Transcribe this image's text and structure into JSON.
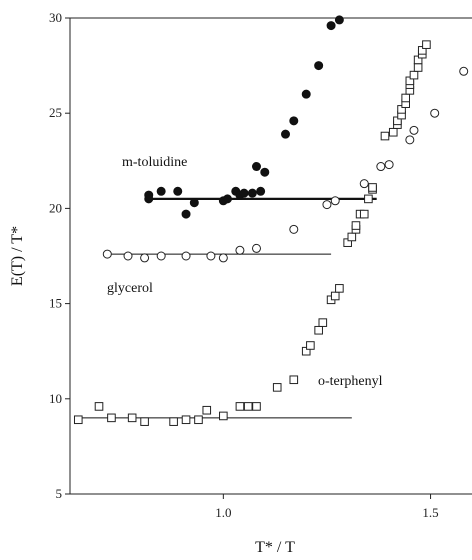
{
  "chart_data": {
    "type": "scatter",
    "xlabel": "T* / T",
    "ylabel": "E(T) / T*",
    "xlim": [
      0.63,
      1.6
    ],
    "ylim": [
      5,
      30
    ],
    "xticks": [
      "1.0",
      "1.5"
    ],
    "yticks": [
      "5",
      "10",
      "15",
      "20",
      "25",
      "30"
    ],
    "grid": false,
    "legend": "none",
    "annotations": [
      "m-toluidine",
      "glycerol",
      "o-terphenyl"
    ],
    "series": [
      {
        "name": "m-toluidine",
        "marker": "filled-circle",
        "points": [
          [
            0.82,
            20.7
          ],
          [
            0.82,
            20.5
          ],
          [
            0.85,
            20.9
          ],
          [
            0.89,
            20.9
          ],
          [
            0.91,
            19.7
          ],
          [
            0.93,
            20.3
          ],
          [
            1.0,
            20.4
          ],
          [
            1.01,
            20.5
          ],
          [
            1.03,
            20.9
          ],
          [
            1.04,
            20.7
          ],
          [
            1.05,
            20.8
          ],
          [
            1.07,
            20.8
          ],
          [
            1.08,
            22.2
          ],
          [
            1.09,
            20.9
          ],
          [
            1.1,
            21.9
          ],
          [
            1.15,
            23.9
          ],
          [
            1.17,
            24.6
          ],
          [
            1.2,
            26.0
          ],
          [
            1.23,
            27.5
          ],
          [
            1.26,
            29.6
          ],
          [
            1.28,
            29.9
          ]
        ],
        "fit_line": {
          "x": [
            0.81,
            1.37
          ],
          "y": [
            20.5,
            20.5
          ]
        }
      },
      {
        "name": "glycerol",
        "marker": "open-circle",
        "points": [
          [
            0.72,
            17.6
          ],
          [
            0.77,
            17.5
          ],
          [
            0.81,
            17.4
          ],
          [
            0.85,
            17.5
          ],
          [
            0.91,
            17.5
          ],
          [
            0.97,
            17.5
          ],
          [
            1.0,
            17.4
          ],
          [
            1.04,
            17.8
          ],
          [
            1.08,
            17.9
          ],
          [
            1.17,
            18.9
          ],
          [
            1.25,
            20.2
          ],
          [
            1.27,
            20.4
          ],
          [
            1.34,
            21.3
          ],
          [
            1.38,
            22.2
          ],
          [
            1.4,
            22.3
          ],
          [
            1.45,
            23.6
          ],
          [
            1.46,
            24.1
          ],
          [
            1.51,
            25.0
          ],
          [
            1.58,
            27.2
          ]
        ],
        "fit_line": {
          "x": [
            0.71,
            1.26
          ],
          "y": [
            17.6,
            17.6
          ]
        }
      },
      {
        "name": "o-terphenyl",
        "marker": "open-square",
        "points": [
          [
            0.65,
            8.9
          ],
          [
            0.7,
            9.6
          ],
          [
            0.73,
            9.0
          ],
          [
            0.78,
            9.0
          ],
          [
            0.81,
            8.8
          ],
          [
            0.88,
            8.8
          ],
          [
            0.91,
            8.9
          ],
          [
            0.94,
            8.9
          ],
          [
            0.96,
            9.4
          ],
          [
            1.0,
            9.1
          ],
          [
            1.04,
            9.6
          ],
          [
            1.06,
            9.6
          ],
          [
            1.08,
            9.6
          ],
          [
            1.13,
            10.6
          ],
          [
            1.17,
            11.0
          ],
          [
            1.2,
            12.5
          ],
          [
            1.21,
            12.8
          ],
          [
            1.23,
            13.6
          ],
          [
            1.24,
            14.0
          ],
          [
            1.26,
            15.2
          ],
          [
            1.27,
            15.4
          ],
          [
            1.28,
            15.8
          ],
          [
            1.3,
            18.2
          ],
          [
            1.31,
            18.5
          ],
          [
            1.32,
            18.9
          ],
          [
            1.32,
            19.1
          ],
          [
            1.33,
            19.7
          ],
          [
            1.34,
            19.7
          ],
          [
            1.35,
            20.5
          ],
          [
            1.36,
            21.0
          ],
          [
            1.36,
            21.1
          ],
          [
            1.39,
            23.8
          ],
          [
            1.41,
            24.0
          ],
          [
            1.42,
            24.4
          ],
          [
            1.42,
            24.6
          ],
          [
            1.43,
            24.9
          ],
          [
            1.43,
            25.2
          ],
          [
            1.44,
            25.5
          ],
          [
            1.44,
            25.8
          ],
          [
            1.45,
            26.2
          ],
          [
            1.45,
            26.5
          ],
          [
            1.45,
            26.7
          ],
          [
            1.46,
            27.0
          ],
          [
            1.47,
            27.4
          ],
          [
            1.47,
            27.8
          ],
          [
            1.48,
            28.1
          ],
          [
            1.48,
            28.3
          ],
          [
            1.49,
            28.6
          ]
        ],
        "fit_line": {
          "x": [
            0.66,
            1.31
          ],
          "y": [
            9.0,
            9.0
          ]
        }
      }
    ]
  }
}
